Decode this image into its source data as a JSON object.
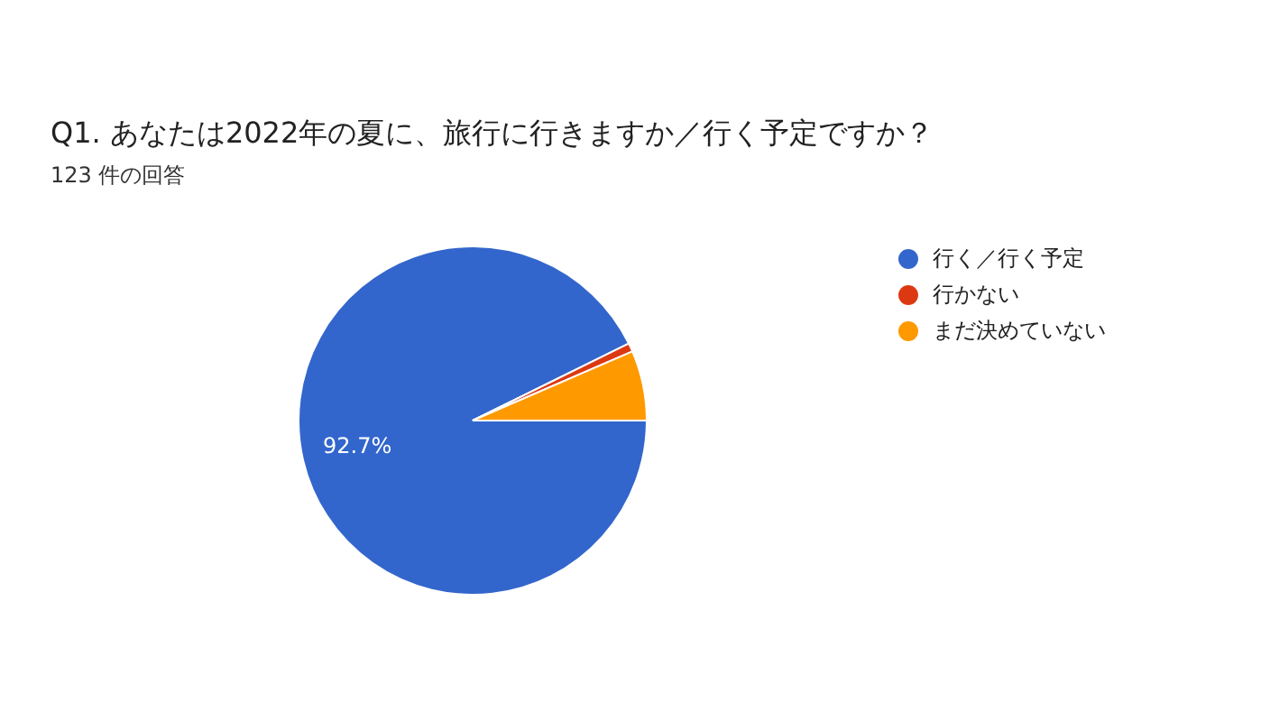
{
  "chart_data": {
    "type": "pie",
    "title": "Q1. あなたは2022年の夏に、旅行に行きますか／行く予定ですか？",
    "subtitle": "123 件の回答",
    "categories": [
      "行く／行く予定",
      "行かない",
      "まだ決めていない"
    ],
    "values": [
      92.7,
      0.8,
      6.5
    ],
    "colors": [
      "#3366cc",
      "#dc3912",
      "#ff9900"
    ],
    "value_labels": [
      "92.7%",
      null,
      null
    ],
    "legend": "right"
  }
}
